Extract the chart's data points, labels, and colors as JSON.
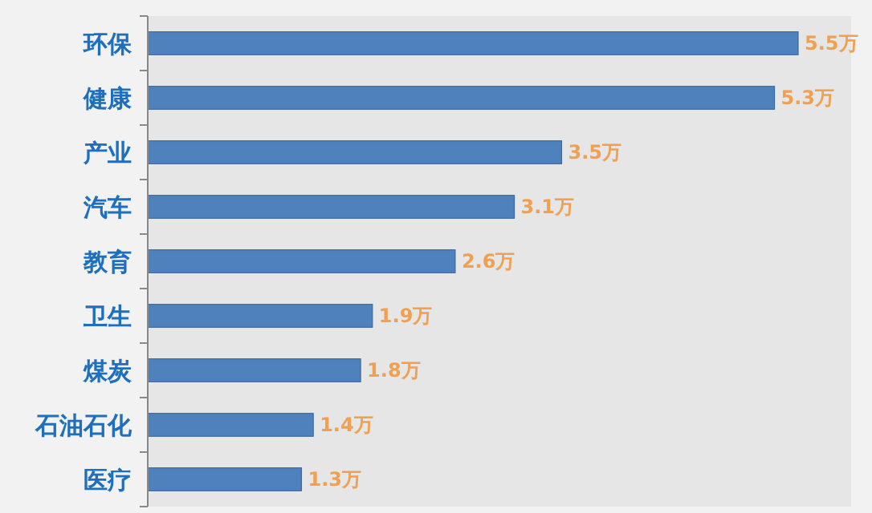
{
  "chart_data": {
    "type": "bar",
    "orientation": "horizontal",
    "categories": [
      "环保",
      "健康",
      "产业",
      "汽车",
      "教育",
      "卫生",
      "煤炭",
      "石油石化",
      "医疗"
    ],
    "values": [
      5.5,
      5.3,
      3.5,
      3.1,
      2.6,
      1.9,
      1.8,
      1.4,
      1.3
    ],
    "color": "#4f81bd",
    "value_labels": [
      "5.5万",
      "5.3万",
      "3.5万",
      "3.1万",
      "2.6万",
      "1.9万",
      "1.8万",
      "1.4万",
      "1.3万"
    ]
  }
}
